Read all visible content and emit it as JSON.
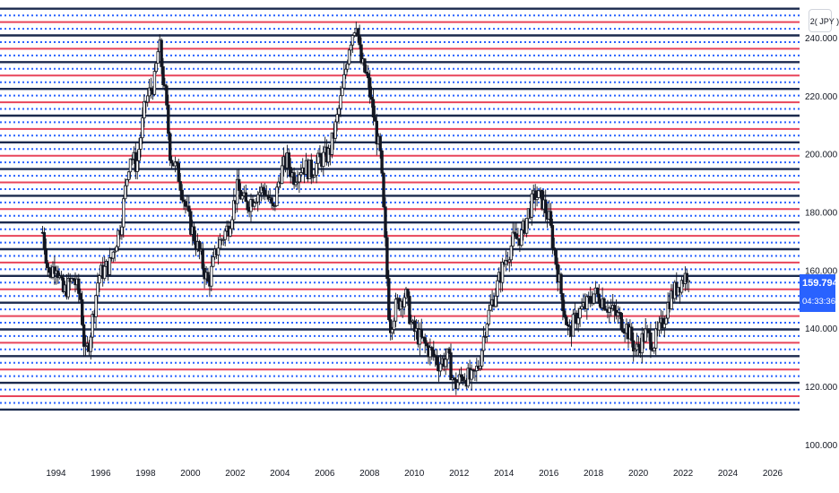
{
  "symbol_button": " 2( JPY )",
  "last_price": "159.794",
  "countdown": "04:33:36",
  "colors": {
    "navy": "#1b2a4e",
    "red": "#e8455a",
    "blue": "#2962ff",
    "candle": "#131722",
    "axis_text": "#131722"
  },
  "chart_data": {
    "type": "candlestick",
    "y_ticks": [
      "240.000",
      "220.000",
      "200.000",
      "180.000",
      "160.000",
      "140.000",
      "120.000",
      "100.000"
    ],
    "y_tick_values": [
      240,
      220,
      200,
      180,
      160,
      140,
      120,
      100
    ],
    "x_ticks": [
      "1994",
      "1996",
      "1998",
      "2000",
      "2002",
      "2004",
      "2006",
      "2008",
      "2010",
      "2012",
      "2014",
      "2016",
      "2018",
      "2020",
      "2022",
      "2024",
      "2026"
    ],
    "ylim": [
      95,
      253
    ],
    "xlim": [
      1991.5,
      2027.2
    ],
    "grid": false,
    "horizontal_levels": {
      "start": 112,
      "end": 250,
      "step": 2.3,
      "pattern": [
        "navy-solid",
        "blue-dotted",
        "red-solid",
        "blue-dotted"
      ]
    },
    "price_path": [
      [
        1993.4,
        173
      ],
      [
        1993.7,
        158
      ],
      [
        1994.0,
        163
      ],
      [
        1994.3,
        152
      ],
      [
        1994.8,
        157
      ],
      [
        1995.1,
        150
      ],
      [
        1995.3,
        130
      ],
      [
        1995.5,
        136
      ],
      [
        1995.9,
        158
      ],
      [
        1996.4,
        162
      ],
      [
        1996.9,
        176
      ],
      [
        1997.3,
        200
      ],
      [
        1997.6,
        196
      ],
      [
        1998.0,
        218
      ],
      [
        1998.4,
        225
      ],
      [
        1998.6,
        238
      ],
      [
        1998.9,
        218
      ],
      [
        1999.1,
        200
      ],
      [
        1999.5,
        192
      ],
      [
        1999.9,
        178
      ],
      [
        2000.4,
        166
      ],
      [
        2000.8,
        155
      ],
      [
        2001.2,
        168
      ],
      [
        2001.7,
        175
      ],
      [
        2002.1,
        188
      ],
      [
        2002.5,
        182
      ],
      [
        2002.9,
        186
      ],
      [
        2003.3,
        188
      ],
      [
        2003.7,
        180
      ],
      [
        2004.0,
        193
      ],
      [
        2004.3,
        198
      ],
      [
        2004.6,
        192
      ],
      [
        2005.0,
        196
      ],
      [
        2005.4,
        194
      ],
      [
        2005.8,
        198
      ],
      [
        2006.2,
        200
      ],
      [
        2006.5,
        210
      ],
      [
        2006.8,
        222
      ],
      [
        2007.1,
        238
      ],
      [
        2007.4,
        246
      ],
      [
        2007.6,
        232
      ],
      [
        2007.9,
        226
      ],
      [
        2008.2,
        212
      ],
      [
        2008.5,
        198
      ],
      [
        2008.7,
        170
      ],
      [
        2008.9,
        140
      ],
      [
        2009.2,
        148
      ],
      [
        2009.6,
        152
      ],
      [
        2009.9,
        140
      ],
      [
        2010.3,
        136
      ],
      [
        2010.7,
        132
      ],
      [
        2011.1,
        128
      ],
      [
        2011.5,
        130
      ],
      [
        2011.8,
        120
      ],
      [
        2012.2,
        124
      ],
      [
        2012.6,
        122
      ],
      [
        2012.9,
        128
      ],
      [
        2013.2,
        142
      ],
      [
        2013.6,
        152
      ],
      [
        2014.0,
        162
      ],
      [
        2014.4,
        170
      ],
      [
        2014.8,
        172
      ],
      [
        2015.1,
        180
      ],
      [
        2015.4,
        186
      ],
      [
        2015.7,
        184
      ],
      [
        2016.0,
        178
      ],
      [
        2016.3,
        164
      ],
      [
        2016.6,
        150
      ],
      [
        2016.9,
        138
      ],
      [
        2017.3,
        145
      ],
      [
        2017.7,
        148
      ],
      [
        2018.0,
        152
      ],
      [
        2018.4,
        150
      ],
      [
        2018.8,
        146
      ],
      [
        2019.1,
        144
      ],
      [
        2019.5,
        140
      ],
      [
        2019.9,
        132
      ],
      [
        2020.3,
        138
      ],
      [
        2020.7,
        135
      ],
      [
        2021.0,
        140
      ],
      [
        2021.4,
        150
      ],
      [
        2021.8,
        155
      ],
      [
        2022.1,
        158
      ],
      [
        2022.3,
        159.8
      ]
    ]
  }
}
